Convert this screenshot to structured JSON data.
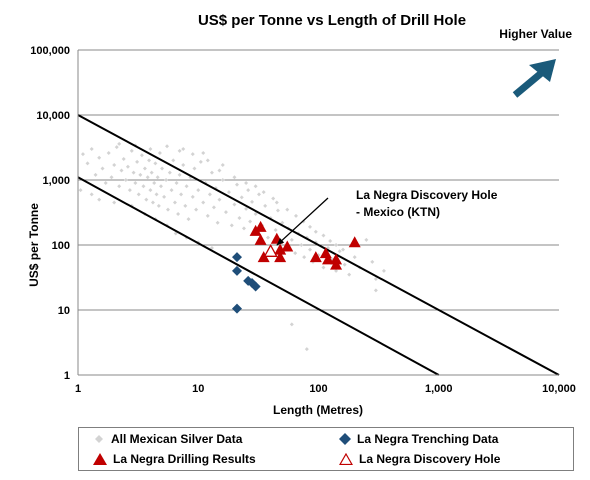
{
  "colors": {
    "background_points": "#d3d3d3",
    "trenching": "#1f4e79",
    "drilling": "#c00000",
    "discovery_stroke": "#c00000",
    "arrow": "#1a5a7a",
    "lines": "#000000"
  },
  "icons": {
    "value_arrow": "arrow-up-right-icon"
  },
  "chart_data": {
    "type": "scatter",
    "title": "US$ per Tonne vs Length of Drill Hole",
    "xlabel": "Length (Metres)",
    "ylabel": "US$ per Tonne",
    "xscale": "log",
    "yscale": "log",
    "xlim": [
      1,
      10000
    ],
    "ylim": [
      1,
      100000
    ],
    "x_ticks": [
      {
        "v": 1,
        "label": "1"
      },
      {
        "v": 10,
        "label": "10"
      },
      {
        "v": 100,
        "label": "100"
      },
      {
        "v": 1000,
        "label": "1,000"
      },
      {
        "v": 10000,
        "label": "10,000"
      }
    ],
    "y_ticks": [
      {
        "v": 1,
        "label": "1"
      },
      {
        "v": 10,
        "label": "10"
      },
      {
        "v": 100,
        "label": "100"
      },
      {
        "v": 1000,
        "label": "1,000"
      },
      {
        "v": 10000,
        "label": "10,000"
      },
      {
        "v": 100000,
        "label": "100,000"
      }
    ],
    "grid": "horizontal",
    "legend_position": "bottom",
    "higher_value_label": "Higher Value",
    "annotation": {
      "text_lines": [
        "La Negra Discovery Hole",
        "- Mexico (KTN)"
      ],
      "points_to": [
        40,
        80
      ]
    },
    "reference_lines": [
      {
        "x": [
          1,
          10000
        ],
        "y": [
          10000,
          1
        ]
      },
      {
        "x": [
          1,
          1000
        ],
        "y": [
          1100,
          1
        ]
      }
    ],
    "series": [
      {
        "name": "All  Mexican Silver Data",
        "marker": "diamond-small",
        "points": [
          [
            1.1,
            2500
          ],
          [
            1.2,
            1800
          ],
          [
            1.3,
            3000
          ],
          [
            1.4,
            1200
          ],
          [
            1.5,
            2200
          ],
          [
            1.6,
            1500
          ],
          [
            1.7,
            900
          ],
          [
            1.8,
            2600
          ],
          [
            1.9,
            1100
          ],
          [
            2.0,
            1700
          ],
          [
            2.1,
            3200
          ],
          [
            2.2,
            800
          ],
          [
            2.3,
            1400
          ],
          [
            2.4,
            2100
          ],
          [
            2.5,
            1000
          ],
          [
            2.6,
            1600
          ],
          [
            2.7,
            700
          ],
          [
            2.8,
            2800
          ],
          [
            2.9,
            1300
          ],
          [
            3.0,
            900
          ],
          [
            3.1,
            1900
          ],
          [
            3.2,
            600
          ],
          [
            3.3,
            1200
          ],
          [
            3.4,
            2400
          ],
          [
            3.5,
            800
          ],
          [
            3.6,
            1500
          ],
          [
            3.7,
            500
          ],
          [
            3.8,
            1100
          ],
          [
            3.9,
            2000
          ],
          [
            4.0,
            700
          ],
          [
            4.1,
            1300
          ],
          [
            4.2,
            450
          ],
          [
            4.3,
            900
          ],
          [
            4.4,
            1800
          ],
          [
            4.5,
            600
          ],
          [
            4.6,
            1100
          ],
          [
            4.7,
            400
          ],
          [
            4.8,
            2600
          ],
          [
            4.9,
            800
          ],
          [
            5.0,
            1500
          ],
          [
            5.2,
            550
          ],
          [
            5.4,
            1000
          ],
          [
            5.6,
            350
          ],
          [
            5.8,
            1300
          ],
          [
            6.0,
            700
          ],
          [
            6.2,
            2000
          ],
          [
            6.4,
            450
          ],
          [
            6.6,
            900
          ],
          [
            6.8,
            300
          ],
          [
            7.0,
            1200
          ],
          [
            7.2,
            600
          ],
          [
            7.5,
            1700
          ],
          [
            7.8,
            400
          ],
          [
            8.0,
            800
          ],
          [
            8.3,
            250
          ],
          [
            8.6,
            1100
          ],
          [
            9.0,
            550
          ],
          [
            9.3,
            1500
          ],
          [
            9.6,
            350
          ],
          [
            10,
            700
          ],
          [
            10.5,
            1900
          ],
          [
            11,
            450
          ],
          [
            11.5,
            900
          ],
          [
            12,
            280
          ],
          [
            12.5,
            600
          ],
          [
            13,
            1300
          ],
          [
            13.5,
            380
          ],
          [
            14,
            750
          ],
          [
            14.5,
            220
          ],
          [
            15,
            500
          ],
          [
            16,
            1000
          ],
          [
            17,
            320
          ],
          [
            18,
            650
          ],
          [
            19,
            200
          ],
          [
            20,
            420
          ],
          [
            21,
            850
          ],
          [
            22,
            260
          ],
          [
            23,
            540
          ],
          [
            24,
            180
          ],
          [
            25,
            360
          ],
          [
            26,
            700
          ],
          [
            27,
            230
          ],
          [
            28,
            460
          ],
          [
            29,
            150
          ],
          [
            30,
            300
          ],
          [
            32,
            600
          ],
          [
            34,
            200
          ],
          [
            36,
            400
          ],
          [
            38,
            130
          ],
          [
            40,
            260
          ],
          [
            42,
            520
          ],
          [
            44,
            170
          ],
          [
            46,
            340
          ],
          [
            48,
            110
          ],
          [
            50,
            220
          ],
          [
            53,
            90
          ],
          [
            56,
            180
          ],
          [
            60,
            120
          ],
          [
            64,
            75
          ],
          [
            68,
            150
          ],
          [
            72,
            100
          ],
          [
            76,
            65
          ],
          [
            80,
            130
          ],
          [
            85,
            85
          ],
          [
            90,
            55
          ],
          [
            95,
            110
          ],
          [
            100,
            70
          ],
          [
            110,
            45
          ],
          [
            120,
            90
          ],
          [
            130,
            60
          ],
          [
            140,
            40
          ],
          [
            150,
            80
          ],
          [
            165,
            50
          ],
          [
            180,
            35
          ],
          [
            200,
            65
          ],
          [
            220,
            45
          ],
          [
            250,
            120
          ],
          [
            280,
            55
          ],
          [
            300,
            30
          ],
          [
            350,
            40
          ],
          [
            1.05,
            700
          ],
          [
            1.5,
            500
          ],
          [
            2.2,
            3600
          ],
          [
            3.0,
            3400
          ],
          [
            4.0,
            3000
          ],
          [
            5.5,
            3300
          ],
          [
            7.0,
            2800
          ],
          [
            9.0,
            2500
          ],
          [
            12,
            2000
          ],
          [
            16,
            1700
          ],
          [
            1.3,
            600
          ],
          [
            2.0,
            450
          ],
          [
            2.8,
            400
          ],
          [
            3.6,
            300
          ],
          [
            4.4,
            250
          ],
          [
            5.5,
            200
          ],
          [
            6.5,
            150
          ],
          [
            8.0,
            130
          ],
          [
            10,
            110
          ],
          [
            13,
            90
          ],
          [
            7.5,
            3000
          ],
          [
            11,
            2600
          ],
          [
            15,
            1400
          ],
          [
            20,
            1100
          ],
          [
            25,
            900
          ],
          [
            30,
            800
          ],
          [
            35,
            650
          ],
          [
            45,
            450
          ],
          [
            55,
            350
          ],
          [
            65,
            280
          ],
          [
            75,
            230
          ],
          [
            85,
            190
          ],
          [
            95,
            160
          ],
          [
            110,
            140
          ],
          [
            125,
            115
          ],
          [
            140,
            100
          ],
          [
            160,
            85
          ],
          [
            60,
            6
          ],
          [
            80,
            2.5
          ],
          [
            300,
            20
          ]
        ]
      },
      {
        "name": "La Negra Trenching Data",
        "marker": "diamond",
        "points": [
          [
            21,
            65
          ],
          [
            21,
            40
          ],
          [
            26,
            28
          ],
          [
            28,
            26
          ],
          [
            30,
            23
          ],
          [
            21,
            10.5
          ]
        ]
      },
      {
        "name": "La Negra Drilling Results",
        "marker": "triangle",
        "points": [
          [
            30,
            165
          ],
          [
            33,
            190
          ],
          [
            33,
            120
          ],
          [
            35,
            65
          ],
          [
            45,
            125
          ],
          [
            48,
            85
          ],
          [
            48,
            65
          ],
          [
            55,
            95
          ],
          [
            95,
            65
          ],
          [
            115,
            75
          ],
          [
            120,
            60
          ],
          [
            140,
            50
          ],
          [
            140,
            60
          ],
          [
            200,
            110
          ]
        ]
      },
      {
        "name": "La Negra Discovery Hole",
        "marker": "triangle-open",
        "points": [
          [
            40,
            80
          ]
        ]
      }
    ]
  }
}
